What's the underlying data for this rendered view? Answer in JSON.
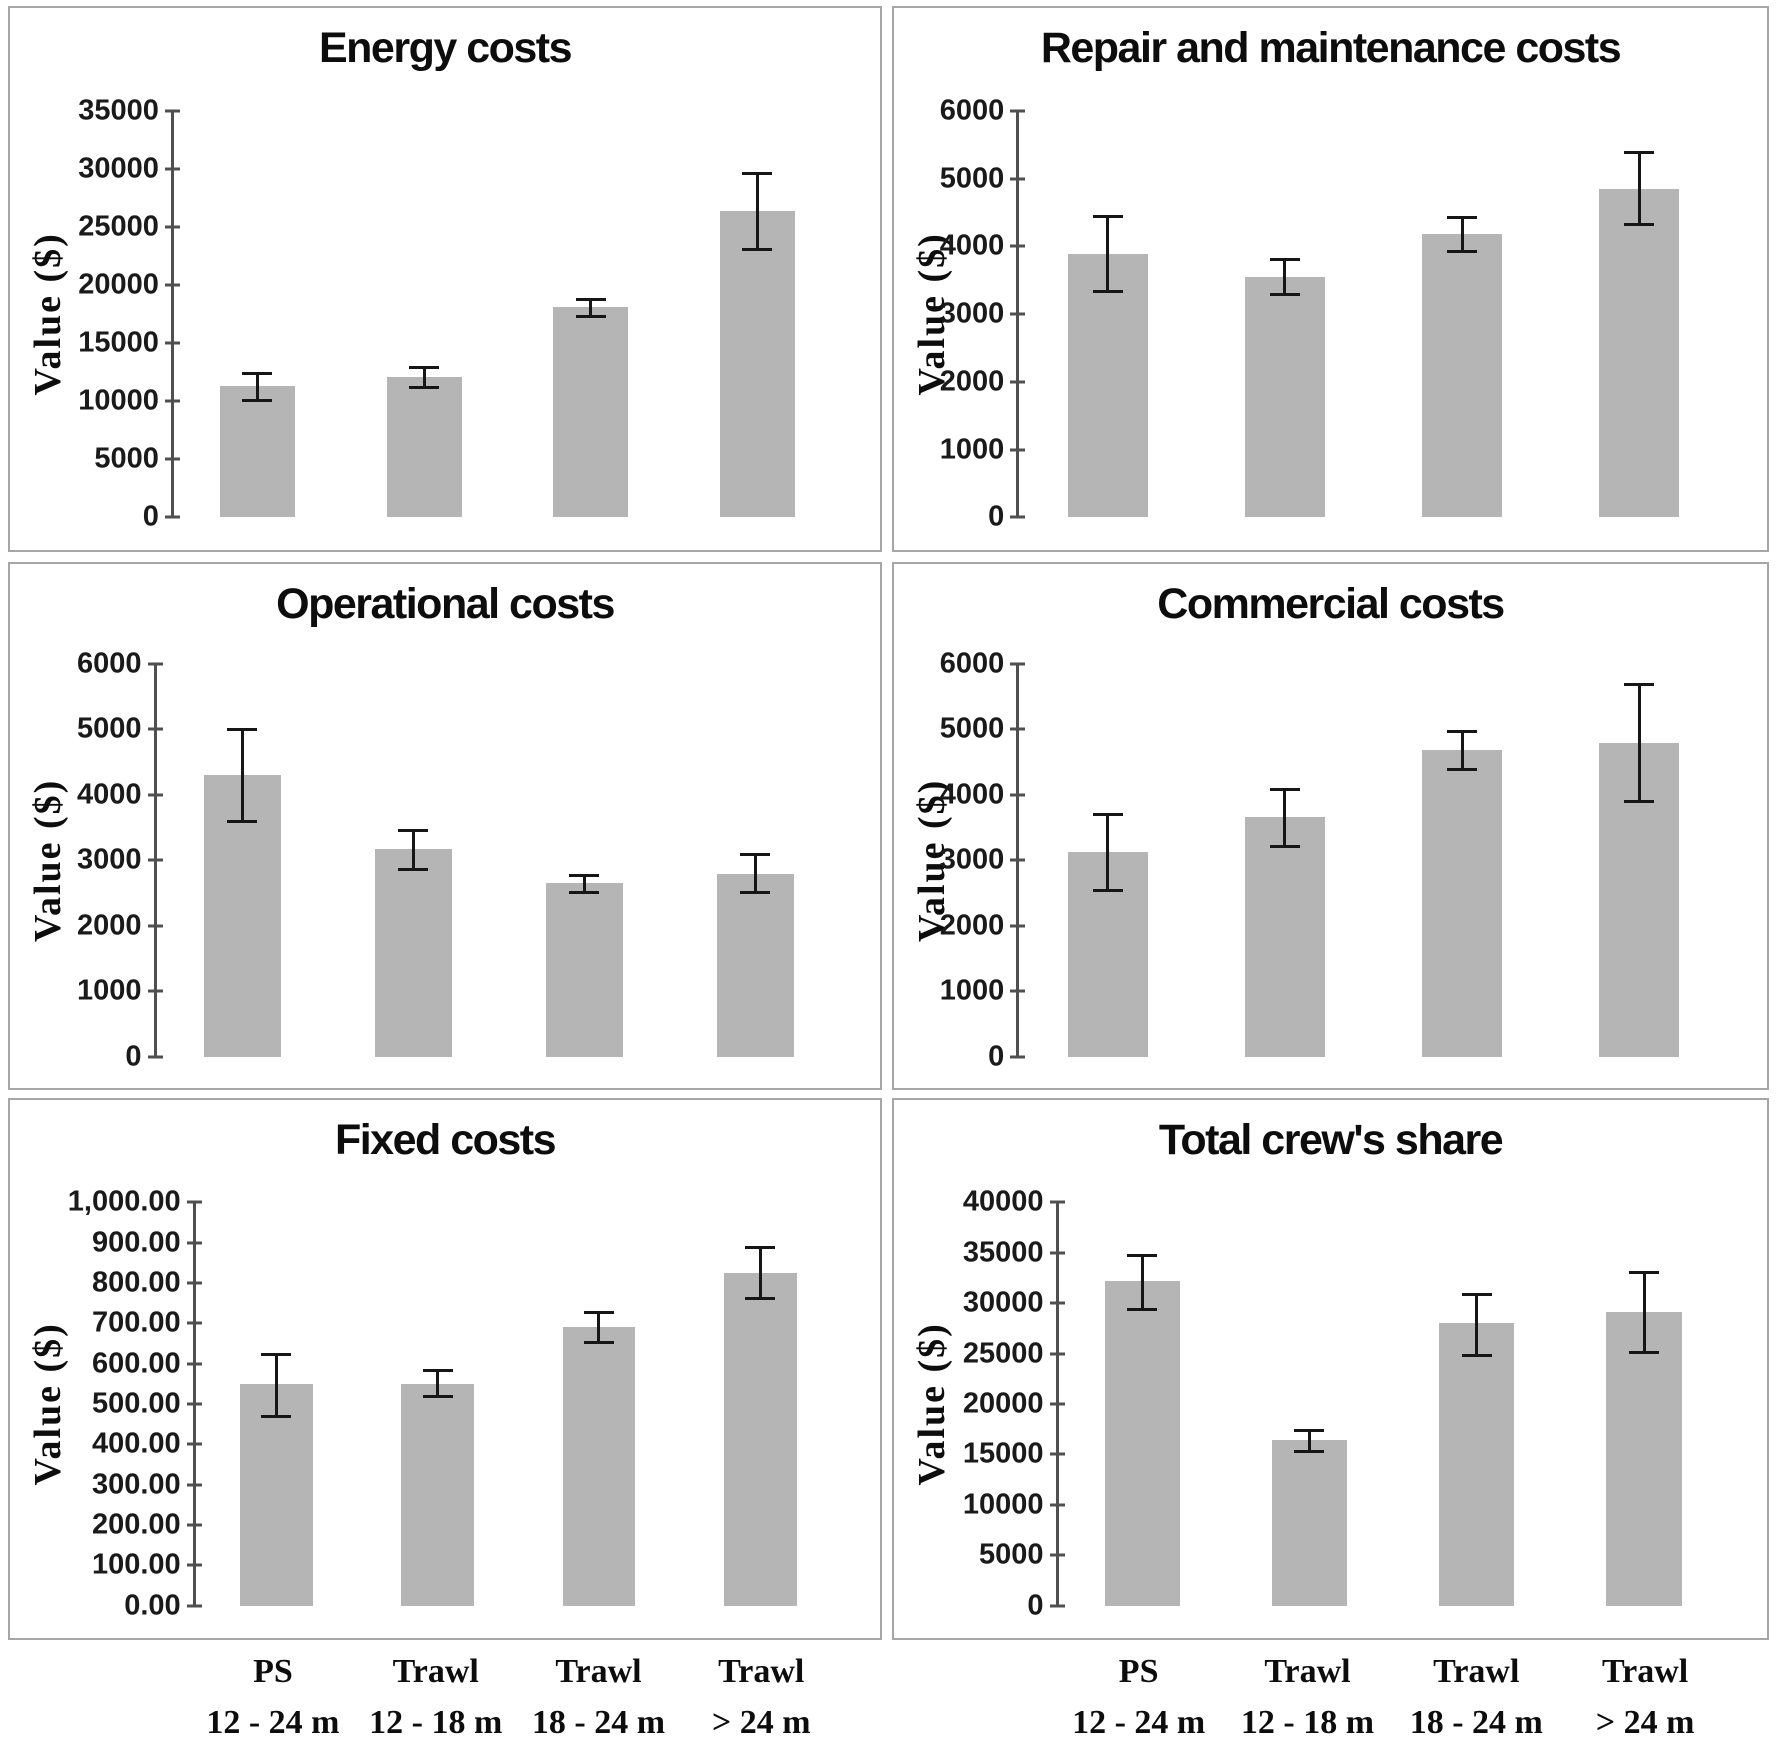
{
  "colors": {
    "bar_fill": "#b5b5b5",
    "error_bar": "#161616",
    "axis_line": "#4f4f4f",
    "panel_border": "#a6a6a6",
    "text": "#0d0d0d"
  },
  "x_categories": [
    {
      "line1": "PS",
      "line2": "12 - 24 m"
    },
    {
      "line1": "Trawl",
      "line2": "12 - 18 m"
    },
    {
      "line1": "Trawl",
      "line2": "18 - 24 m"
    },
    {
      "line1": "Trawl",
      "line2": "> 24 m"
    }
  ],
  "chart_data": [
    {
      "type": "bar",
      "title": "Energy costs",
      "ylabel": "Value ($)",
      "categories": [
        "PS 12 - 24 m",
        "Trawl 12 - 18 m",
        "Trawl 18 - 24 m",
        "Trawl > 24 m"
      ],
      "values": [
        11300,
        12100,
        18100,
        26400
      ],
      "error_low": [
        10100,
        11150,
        17300,
        23100
      ],
      "error_high": [
        12400,
        12900,
        18800,
        29600
      ],
      "ylim": [
        0,
        35000
      ],
      "ytick_step": 5000,
      "ytick_labels": [
        "0",
        "5000",
        "10000",
        "15000",
        "20000",
        "25000",
        "30000",
        "35000"
      ],
      "grid": false,
      "legend": "none"
    },
    {
      "type": "bar",
      "title": "Repair and maintenance costs",
      "ylabel": "Value ($)",
      "categories": [
        "PS 12 - 24 m",
        "Trawl 12 - 18 m",
        "Trawl 18 - 24 m",
        "Trawl > 24 m"
      ],
      "values": [
        3890,
        3550,
        4190,
        4850
      ],
      "error_low": [
        3330,
        3290,
        3920,
        4320
      ],
      "error_high": [
        4440,
        3810,
        4430,
        5390
      ],
      "ylim": [
        0,
        6000
      ],
      "ytick_step": 1000,
      "ytick_labels": [
        "0",
        "1000",
        "2000",
        "3000",
        "4000",
        "5000",
        "6000"
      ],
      "grid": false,
      "legend": "none"
    },
    {
      "type": "bar",
      "title": "Operational costs",
      "ylabel": "Value ($)",
      "categories": [
        "PS 12 - 24 m",
        "Trawl 12 - 18 m",
        "Trawl 18 - 24 m",
        "Trawl > 24 m"
      ],
      "values": [
        4300,
        3170,
        2650,
        2780
      ],
      "error_low": [
        3590,
        2860,
        2500,
        2500
      ],
      "error_high": [
        5000,
        3450,
        2770,
        3080
      ],
      "ylim": [
        0,
        6000
      ],
      "ytick_step": 1000,
      "ytick_labels": [
        "0",
        "1000",
        "2000",
        "3000",
        "4000",
        "5000",
        "6000"
      ],
      "grid": false,
      "legend": "none"
    },
    {
      "type": "bar",
      "title": "Commercial costs",
      "ylabel": "Value ($)",
      "categories": [
        "PS 12 - 24 m",
        "Trawl 12 - 18 m",
        "Trawl 18 - 24 m",
        "Trawl > 24 m"
      ],
      "values": [
        3120,
        3650,
        4680,
        4790
      ],
      "error_low": [
        2530,
        3210,
        4380,
        3900
      ],
      "error_high": [
        3700,
        4080,
        4970,
        5680
      ],
      "ylim": [
        0,
        6000
      ],
      "ytick_step": 1000,
      "ytick_labels": [
        "0",
        "1000",
        "2000",
        "3000",
        "4000",
        "5000",
        "6000"
      ],
      "grid": false,
      "legend": "none"
    },
    {
      "type": "bar",
      "title": "Fixed costs",
      "ylabel": "Value ($)",
      "categories": [
        "PS 12 - 24 m",
        "Trawl 12 - 18 m",
        "Trawl 18 - 24 m",
        "Trawl > 24 m"
      ],
      "values": [
        550,
        550,
        690,
        825
      ],
      "error_low": [
        468,
        518,
        653,
        762
      ],
      "error_high": [
        623,
        583,
        727,
        888
      ],
      "ylim": [
        0,
        1000
      ],
      "ytick_step": 100,
      "ytick_labels": [
        "0.00",
        "100.00",
        "200.00",
        "300.00",
        "400.00",
        "500.00",
        "600.00",
        "700.00",
        "800.00",
        "900.00",
        "1,000.00"
      ],
      "grid": false,
      "legend": "none"
    },
    {
      "type": "bar",
      "title": "Total crew's share",
      "ylabel": "Value ($)",
      "categories": [
        "PS 12 - 24 m",
        "Trawl 12 - 18 m",
        "Trawl 18 - 24 m",
        "Trawl > 24 m"
      ],
      "values": [
        32200,
        16400,
        28000,
        29100
      ],
      "error_low": [
        29400,
        15300,
        24800,
        25100
      ],
      "error_high": [
        34700,
        17400,
        30900,
        33000
      ],
      "ylim": [
        0,
        40000
      ],
      "ytick_step": 5000,
      "ytick_labels": [
        "0",
        "5000",
        "10000",
        "15000",
        "20000",
        "25000",
        "30000",
        "35000",
        "40000"
      ],
      "grid": false,
      "legend": "none"
    }
  ]
}
